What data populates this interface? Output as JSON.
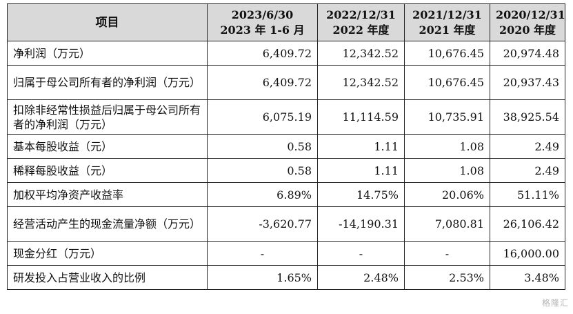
{
  "table": {
    "header": {
      "item": "项目",
      "periods": [
        {
          "line1": "2023/6/30",
          "line2": "2023 年 1-6 月"
        },
        {
          "line1": "2022/12/31",
          "line2": "2022 年度"
        },
        {
          "line1": "2021/12/31",
          "line2": "2021 年度"
        },
        {
          "line1": "2020/12/31",
          "line2": "2020 年度"
        }
      ]
    },
    "rows": [
      {
        "label": "净利润（万元）",
        "values": [
          "6,409.72",
          "12,342.52",
          "10,676.45",
          "20,974.48"
        ]
      },
      {
        "label": "归属于母公司所有者的净利润（万元）",
        "values": [
          "6,409.72",
          "12,342.52",
          "10,676.45",
          "20,937.43"
        ]
      },
      {
        "label": "扣除非经常性损益后归属于母公司所有者的净利润（万元）",
        "values": [
          "6,075.19",
          "11,114.59",
          "10,735.91",
          "38,925.54"
        ]
      },
      {
        "label": "基本每股收益（元）",
        "values": [
          "0.58",
          "1.11",
          "1.08",
          "2.49"
        ]
      },
      {
        "label": "稀释每股收益（元）",
        "values": [
          "0.58",
          "1.11",
          "1.08",
          "2.49"
        ]
      },
      {
        "label": "加权平均净资产收益率",
        "values": [
          "6.89%",
          "14.75%",
          "20.06%",
          "51.11%"
        ]
      },
      {
        "label": "经营活动产生的现金流量净额（万元）",
        "values": [
          "-3,620.77",
          "-14,190.31",
          "7,080.81",
          "26,106.42"
        ]
      },
      {
        "label": "现金分红（万元）",
        "values": [
          "-",
          "-",
          "-",
          "16,000.00"
        ]
      },
      {
        "label": "研发投入占营业收入的比例",
        "values": [
          "1.65%",
          "2.48%",
          "2.53%",
          "3.48%"
        ]
      }
    ]
  },
  "watermark": "格隆汇"
}
